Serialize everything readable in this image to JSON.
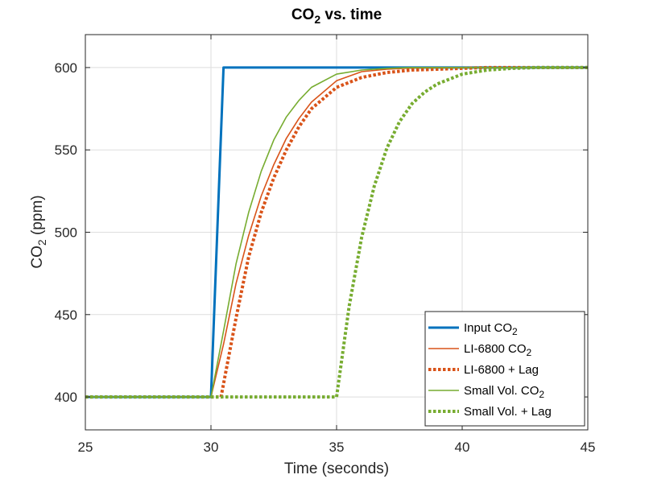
{
  "chart_data": {
    "type": "line",
    "title": {
      "main": "CO",
      "sub": "2",
      "rest": " vs. time"
    },
    "xlabel": "Time (seconds)",
    "ylabel": {
      "main": "CO",
      "sub": "2",
      "rest": " (ppm)"
    },
    "xlim": [
      25,
      45
    ],
    "ylim": [
      380,
      620
    ],
    "xticks": [
      25,
      30,
      35,
      40,
      45
    ],
    "yticks": [
      400,
      450,
      500,
      550,
      600
    ],
    "grid": true,
    "legend_position": "bottom-right",
    "series": [
      {
        "name": {
          "main": "Input CO",
          "sub": "2"
        },
        "color": "#0072BD",
        "width": 3,
        "dash": "solid",
        "x": [
          25,
          30,
          30.5,
          45
        ],
        "y": [
          400,
          400,
          600,
          600
        ]
      },
      {
        "name": {
          "main": "LI-6800 CO",
          "sub": "2"
        },
        "color": "#D95319",
        "width": 1.6,
        "dash": "solid",
        "x": [
          25,
          30,
          30.5,
          31,
          31.5,
          32,
          32.5,
          33,
          33.5,
          34,
          35,
          36,
          37,
          38,
          39,
          40,
          41,
          42,
          43,
          44,
          45
        ],
        "y": [
          400,
          400,
          432,
          469,
          498,
          522,
          541,
          557,
          569,
          579,
          592,
          597.5,
          599,
          599.7,
          600,
          600,
          600,
          600,
          600,
          600,
          600
        ]
      },
      {
        "name": {
          "main": "LI-6800 + Lag",
          "sub": ""
        },
        "color": "#D95319",
        "width": 4,
        "dash": "dot",
        "x": [
          25,
          30.4,
          31,
          31.5,
          32,
          32.5,
          33,
          33.5,
          34,
          35,
          36,
          37,
          38,
          39,
          40,
          41,
          42,
          43,
          44,
          45
        ],
        "y": [
          400,
          400,
          448,
          485,
          512,
          533,
          550,
          564,
          575,
          588,
          594,
          597,
          598.5,
          599,
          599.5,
          600,
          600,
          600,
          600,
          600
        ]
      },
      {
        "name": {
          "main": "Small Vol. CO",
          "sub": "2"
        },
        "color": "#77AC30",
        "width": 1.6,
        "dash": "solid",
        "x": [
          25,
          30,
          30.5,
          31,
          31.5,
          32,
          32.5,
          33,
          33.5,
          34,
          35,
          36,
          37,
          38,
          39,
          40,
          41,
          42,
          43,
          44,
          45
        ],
        "y": [
          400,
          400,
          440,
          481,
          512,
          537,
          556,
          570,
          580,
          588,
          596,
          598.5,
          599.5,
          600,
          600,
          600,
          600,
          600,
          600,
          600,
          600
        ]
      },
      {
        "name": {
          "main": "Small Vol. + Lag",
          "sub": ""
        },
        "color": "#77AC30",
        "width": 4,
        "dash": "dot",
        "x": [
          25,
          35,
          35.5,
          36,
          36.5,
          37,
          37.5,
          38,
          38.5,
          39,
          40,
          41,
          42,
          43,
          44,
          45
        ],
        "y": [
          400,
          400,
          455,
          497,
          528,
          551,
          567,
          578,
          585,
          590,
          596,
          598.5,
          599.5,
          600,
          600,
          600
        ]
      }
    ]
  }
}
